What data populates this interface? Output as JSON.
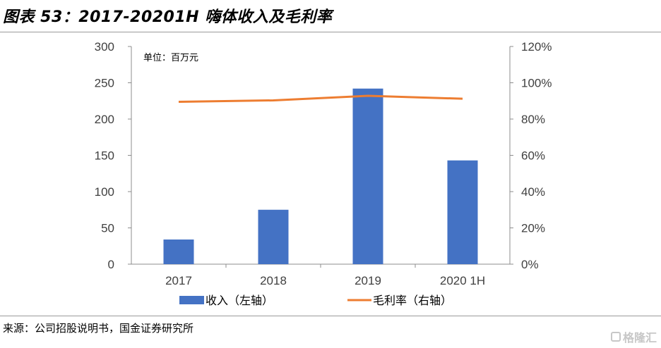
{
  "header": {
    "title": "图表 53：2017-20201H 嗨体收入及毛利率"
  },
  "footer": {
    "source": "来源：公司招股说明书，国金证券研究所",
    "watermark": "格隆汇"
  },
  "chart_data": {
    "type": "bar",
    "categories": [
      "2017",
      "2018",
      "2019",
      "2020 1H"
    ],
    "unit_note": "单位：百万元",
    "series": [
      {
        "name": "收入（左轴）",
        "type": "bar",
        "axis": "left",
        "color": "#4472C4",
        "values": [
          34,
          75,
          242,
          143
        ]
      },
      {
        "name": "毛利率（右轴）",
        "type": "line",
        "axis": "right",
        "color": "#ED7D31",
        "values": [
          0.895,
          0.903,
          0.928,
          0.912
        ]
      }
    ],
    "y_left": {
      "min": 0,
      "max": 300,
      "ticks": [
        "0",
        "50",
        "100",
        "150",
        "200",
        "250",
        "300"
      ]
    },
    "y_right": {
      "min": 0,
      "max": 1.2,
      "ticks": [
        "0%",
        "20%",
        "40%",
        "60%",
        "80%",
        "100%",
        "120%"
      ]
    },
    "grid": false,
    "legend": "bottom"
  }
}
